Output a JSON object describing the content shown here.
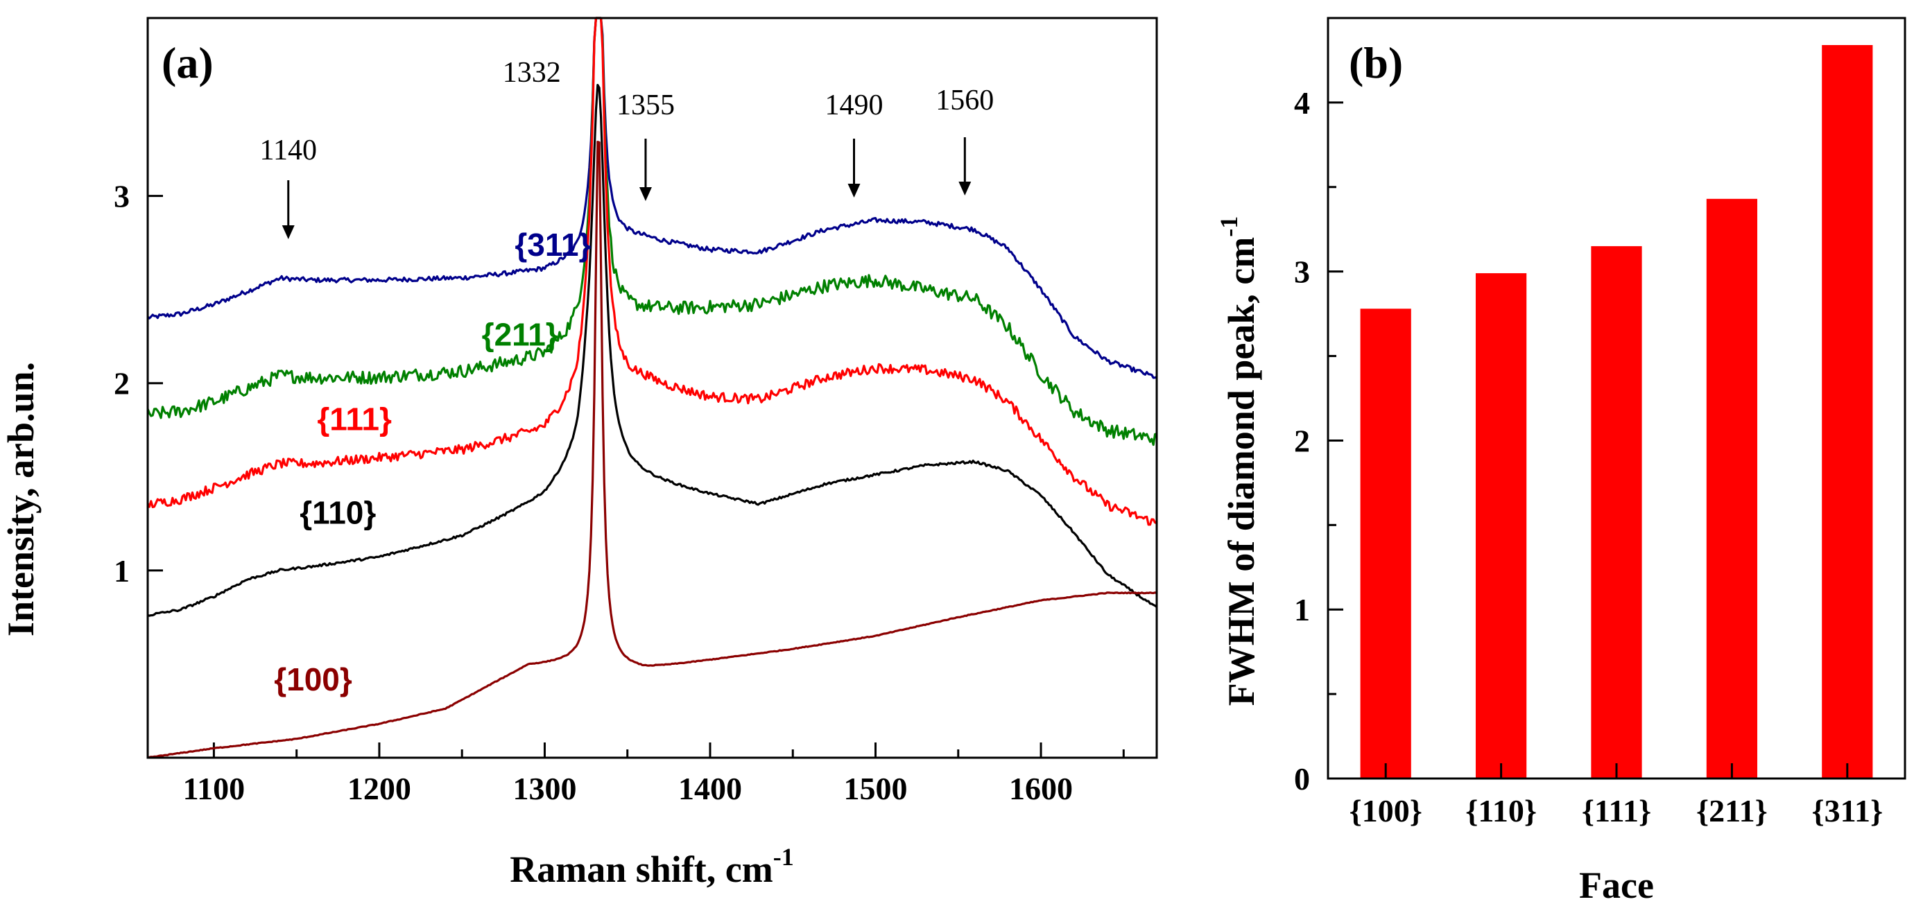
{
  "chart_data": [
    {
      "type": "line",
      "panel_label": "(a)",
      "xlabel": "Raman shift, cm",
      "xlabel_sup": "-1",
      "ylabel": "Intensity, arb.un.",
      "xlim": [
        1060,
        1670
      ],
      "ylim": [
        0,
        3.95
      ],
      "x_ticks": [
        1100,
        1200,
        1300,
        1400,
        1500,
        1600
      ],
      "y_ticks": [
        1,
        2,
        3
      ],
      "grid": false,
      "peak_markers": [
        {
          "label": "1140",
          "x": 1145
        },
        {
          "label": "1332",
          "x": 1332
        },
        {
          "label": "1355",
          "x": 1361
        },
        {
          "label": "1490",
          "x": 1487
        },
        {
          "label": "1560",
          "x": 1554
        }
      ],
      "series": [
        {
          "name": "{311}",
          "color": "#00008B",
          "noise": 0.012,
          "peak_height": 4.6,
          "peak_width": 3.0,
          "label_x": 1305,
          "label_y": 2.68,
          "points": [
            [
              1060,
              2.35
            ],
            [
              1080,
              2.37
            ],
            [
              1100,
              2.42
            ],
            [
              1120,
              2.49
            ],
            [
              1140,
              2.56
            ],
            [
              1160,
              2.55
            ],
            [
              1200,
              2.55
            ],
            [
              1250,
              2.56
            ],
            [
              1300,
              2.6
            ],
            [
              1320,
              2.66
            ],
            [
              1325,
              2.72
            ],
            [
              1340,
              2.78
            ],
            [
              1360,
              2.77
            ],
            [
              1400,
              2.71
            ],
            [
              1430,
              2.7
            ],
            [
              1470,
              2.82
            ],
            [
              1500,
              2.87
            ],
            [
              1530,
              2.86
            ],
            [
              1560,
              2.82
            ],
            [
              1580,
              2.72
            ],
            [
              1600,
              2.5
            ],
            [
              1620,
              2.25
            ],
            [
              1640,
              2.12
            ],
            [
              1670,
              2.03
            ]
          ]
        },
        {
          "name": "{211}",
          "color": "#008000",
          "noise": 0.035,
          "peak_height": 4.6,
          "peak_width": 3.5,
          "label_x": 1285,
          "label_y": 2.2,
          "points": [
            [
              1060,
              1.83
            ],
            [
              1080,
              1.85
            ],
            [
              1100,
              1.9
            ],
            [
              1120,
              1.97
            ],
            [
              1140,
              2.04
            ],
            [
              1160,
              2.03
            ],
            [
              1200,
              2.03
            ],
            [
              1250,
              2.06
            ],
            [
              1300,
              2.14
            ],
            [
              1320,
              2.26
            ],
            [
              1325,
              2.35
            ],
            [
              1340,
              2.35
            ],
            [
              1360,
              2.38
            ],
            [
              1400,
              2.4
            ],
            [
              1430,
              2.42
            ],
            [
              1470,
              2.52
            ],
            [
              1500,
              2.55
            ],
            [
              1530,
              2.5
            ],
            [
              1560,
              2.45
            ],
            [
              1580,
              2.3
            ],
            [
              1600,
              2.05
            ],
            [
              1620,
              1.85
            ],
            [
              1640,
              1.75
            ],
            [
              1670,
              1.7
            ]
          ]
        },
        {
          "name": "{111}",
          "color": "#FF0000",
          "noise": 0.025,
          "peak_height": 4.5,
          "peak_width": 4.0,
          "label_x": 1185,
          "label_y": 1.75,
          "points": [
            [
              1060,
              1.35
            ],
            [
              1080,
              1.38
            ],
            [
              1100,
              1.44
            ],
            [
              1120,
              1.51
            ],
            [
              1140,
              1.57
            ],
            [
              1160,
              1.57
            ],
            [
              1200,
              1.6
            ],
            [
              1250,
              1.64
            ],
            [
              1300,
              1.74
            ],
            [
              1320,
              1.9
            ],
            [
              1325,
              2.05
            ],
            [
              1340,
              1.98
            ],
            [
              1360,
              2.0
            ],
            [
              1400,
              1.92
            ],
            [
              1430,
              1.91
            ],
            [
              1470,
              2.03
            ],
            [
              1500,
              2.08
            ],
            [
              1530,
              2.07
            ],
            [
              1560,
              2.02
            ],
            [
              1580,
              1.9
            ],
            [
              1600,
              1.7
            ],
            [
              1620,
              1.5
            ],
            [
              1640,
              1.35
            ],
            [
              1670,
              1.25
            ]
          ]
        },
        {
          "name": "{110}",
          "color": "#000000",
          "noise": 0.006,
          "peak_height": 3.6,
          "peak_width": 5.0,
          "label_x": 1175,
          "label_y": 1.25,
          "points": [
            [
              1060,
              0.76
            ],
            [
              1080,
              0.79
            ],
            [
              1100,
              0.86
            ],
            [
              1120,
              0.95
            ],
            [
              1140,
              1.0
            ],
            [
              1160,
              1.02
            ],
            [
              1200,
              1.07
            ],
            [
              1250,
              1.18
            ],
            [
              1300,
              1.38
            ],
            [
              1320,
              1.55
            ],
            [
              1325,
              1.7
            ],
            [
              1340,
              1.52
            ],
            [
              1360,
              1.48
            ],
            [
              1400,
              1.4
            ],
            [
              1430,
              1.35
            ],
            [
              1470,
              1.46
            ],
            [
              1500,
              1.51
            ],
            [
              1530,
              1.56
            ],
            [
              1560,
              1.58
            ],
            [
              1580,
              1.53
            ],
            [
              1600,
              1.4
            ],
            [
              1620,
              1.2
            ],
            [
              1640,
              0.98
            ],
            [
              1660,
              0.86
            ],
            [
              1670,
              0.8
            ]
          ]
        },
        {
          "name": "{100}",
          "color": "#8B0000",
          "noise": 0.002,
          "peak_height": 3.4,
          "peak_width": 2.5,
          "label_x": 1160,
          "label_y": 0.36,
          "points": [
            [
              1060,
              0.0
            ],
            [
              1100,
              0.05
            ],
            [
              1150,
              0.1
            ],
            [
              1200,
              0.18
            ],
            [
              1240,
              0.26
            ],
            [
              1270,
              0.4
            ],
            [
              1290,
              0.49
            ],
            [
              1310,
              0.5
            ],
            [
              1325,
              0.5
            ],
            [
              1340,
              0.48
            ],
            [
              1360,
              0.47
            ],
            [
              1400,
              0.52
            ],
            [
              1450,
              0.58
            ],
            [
              1500,
              0.65
            ],
            [
              1550,
              0.75
            ],
            [
              1600,
              0.84
            ],
            [
              1640,
              0.88
            ],
            [
              1670,
              0.88
            ]
          ]
        }
      ]
    },
    {
      "type": "bar",
      "panel_label": "(b)",
      "xlabel": "Face",
      "ylabel": "FWHM of diamond peak, cm",
      "ylabel_sup": "-1",
      "ylim": [
        0,
        4.5
      ],
      "y_ticks": [
        0,
        1,
        2,
        3,
        4
      ],
      "grid": false,
      "bar_color": "#FF0000",
      "categories": [
        "{100}",
        "{110}",
        "{111}",
        "{211}",
        "{311}"
      ],
      "values": [
        2.78,
        2.99,
        3.15,
        3.43,
        4.34
      ]
    }
  ]
}
